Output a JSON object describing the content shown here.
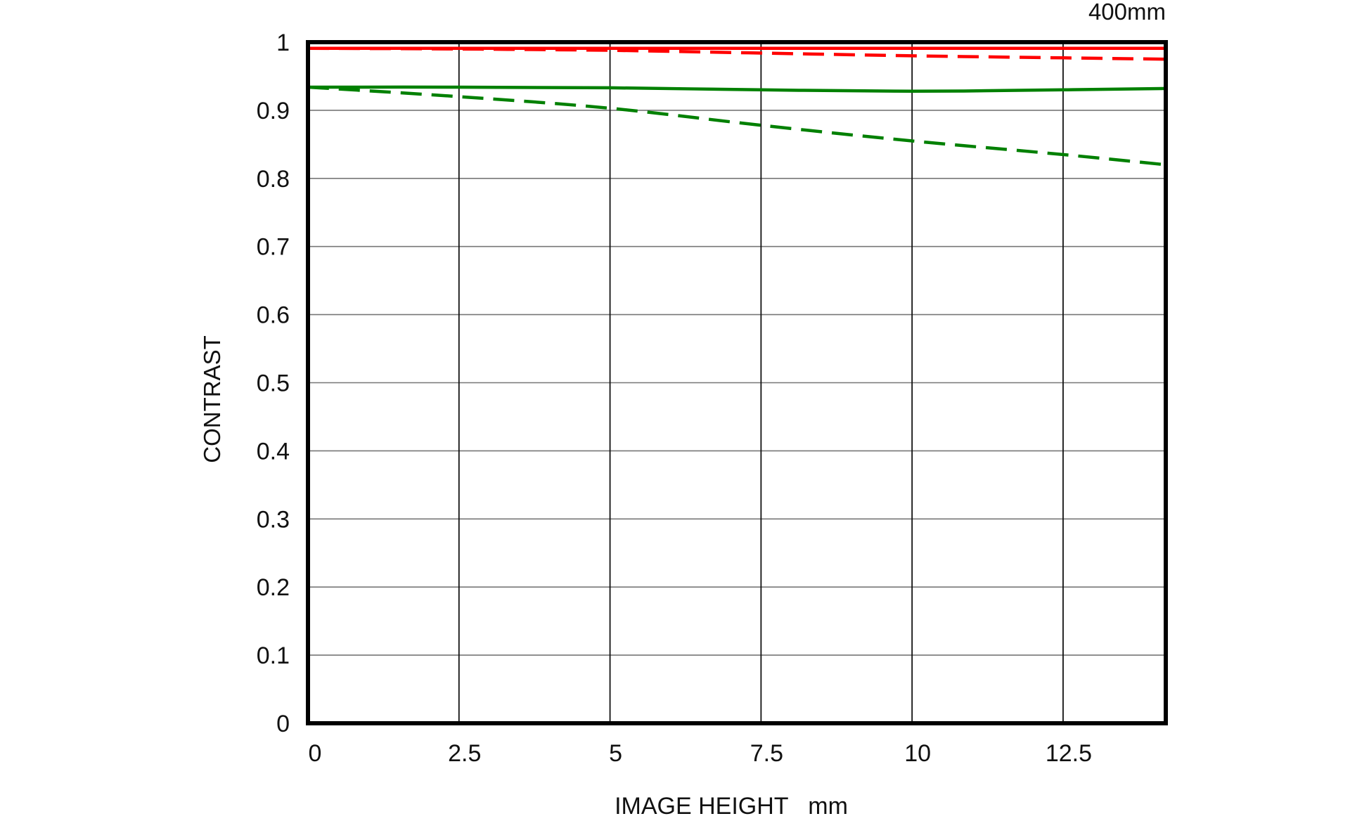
{
  "chart_data": {
    "type": "line",
    "title": "400mm",
    "xlabel": "IMAGE HEIGHT   mm",
    "ylabel": "CONTRAST",
    "xlim": [
      0,
      14.2
    ],
    "ylim": [
      0,
      1
    ],
    "x_ticks": [
      0,
      2.5,
      5,
      7.5,
      10,
      12.5
    ],
    "x_tick_labels": [
      "0",
      "2.5",
      "5",
      "7.5",
      "10",
      "12.5"
    ],
    "y_ticks": [
      0,
      0.1,
      0.2,
      0.3,
      0.4,
      0.5,
      0.6,
      0.7,
      0.8,
      0.9,
      1
    ],
    "y_tick_labels": [
      "0",
      "0.1",
      "0.2",
      "0.3",
      "0.4",
      "0.5",
      "0.6",
      "0.7",
      "0.8",
      "0.9",
      "1"
    ],
    "grid": true,
    "series": [
      {
        "color": "#ff0000",
        "style": "solid",
        "x": [
          0,
          2.5,
          5,
          7.5,
          10,
          12.5,
          14.2
        ],
        "values": [
          0.991,
          0.991,
          0.991,
          0.991,
          0.991,
          0.991,
          0.991
        ]
      },
      {
        "color": "#ff0000",
        "style": "dashed",
        "x": [
          0,
          2.5,
          5,
          7.5,
          10,
          12.5,
          14.2
        ],
        "values": [
          0.991,
          0.99,
          0.988,
          0.984,
          0.98,
          0.977,
          0.975
        ]
      },
      {
        "color": "#008000",
        "style": "solid",
        "x": [
          0,
          2.5,
          5,
          7.5,
          10,
          12.5,
          14.2
        ],
        "values": [
          0.934,
          0.934,
          0.933,
          0.93,
          0.928,
          0.93,
          0.932
        ]
      },
      {
        "color": "#008000",
        "style": "dashed",
        "x": [
          0,
          2.5,
          5,
          7.5,
          10,
          12.5,
          14.2
        ],
        "values": [
          0.934,
          0.92,
          0.903,
          0.878,
          0.855,
          0.835,
          0.82
        ]
      }
    ]
  }
}
